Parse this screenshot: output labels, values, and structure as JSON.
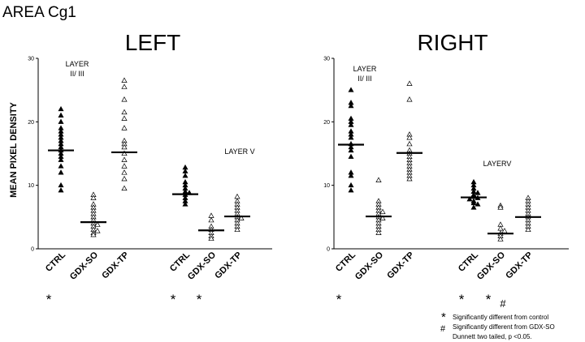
{
  "figure": {
    "title": "AREA Cg1",
    "ylabel": "MEAN PIXEL DENSITY",
    "legend": [
      {
        "symbol": "*",
        "text": "Significantly different from control"
      },
      {
        "symbol": "#",
        "text": "Significantly different from GDX-SO"
      },
      {
        "symbol": "",
        "text": "Dunnett two tailed, p <0.05."
      }
    ]
  },
  "chart_data": [
    {
      "type": "scatter",
      "title": "LEFT",
      "ylim": [
        0,
        30
      ],
      "yticks": [
        "0",
        "10",
        "20",
        "30"
      ],
      "grid": false,
      "groups": [
        {
          "layer_label": [
            "LAYER",
            "II/ III"
          ],
          "categories": [
            {
              "name": "CTRL",
              "marker": "filled",
              "mean": 15.5,
              "sig": "*",
              "values": [
                22,
                21,
                20,
                19,
                18.5,
                18,
                17.5,
                17,
                16.5,
                16,
                15.5,
                15,
                14.5,
                14,
                13,
                12,
                10,
                9.2
              ]
            },
            {
              "name": "GDX-SO",
              "marker": "open",
              "mean": 4.2,
              "sig": "",
              "values": [
                8.5,
                8,
                7,
                6.5,
                6,
                5.5,
                5,
                4.5,
                4,
                3.8,
                3.5,
                3,
                2.8,
                2.5,
                2.2
              ]
            },
            {
              "name": "GDX-TP",
              "marker": "open",
              "mean": 15.2,
              "sig": "",
              "values": [
                26.5,
                25.5,
                23.5,
                21.5,
                20.5,
                19,
                17,
                16.5,
                16,
                15,
                14,
                13,
                12,
                11,
                9.5
              ]
            }
          ]
        },
        {
          "layer_label": [
            "LAYER V"
          ],
          "categories": [
            {
              "name": "CTRL",
              "marker": "filled",
              "mean": 8.6,
              "sig": "*",
              "values": [
                12.8,
                12.2,
                11.5,
                10.5,
                10,
                9.5,
                9,
                8.8,
                8.5,
                8,
                7.5,
                7
              ]
            },
            {
              "name": "GDX-SO",
              "marker": "open",
              "mean": 2.9,
              "sig": "*",
              "values": [
                5.2,
                4.5,
                3.5,
                3,
                2.5,
                2,
                1.6
              ]
            },
            {
              "name": "GDX-TP",
              "marker": "open",
              "mean": 5.1,
              "sig": "",
              "values": [
                8.2,
                7.5,
                7,
                6.5,
                6,
                5.5,
                5,
                4.8,
                4.5,
                4,
                3.5,
                3
              ]
            }
          ]
        }
      ]
    },
    {
      "type": "scatter",
      "title": "RIGHT",
      "ylim": [
        0,
        30
      ],
      "yticks": [
        "0",
        "10",
        "20",
        "30"
      ],
      "grid": false,
      "groups": [
        {
          "layer_label": [
            "LAYER",
            "II/ III"
          ],
          "categories": [
            {
              "name": "CTRL",
              "marker": "filled",
              "mean": 16.4,
              "sig": "*",
              "values": [
                25,
                23,
                22.5,
                20.5,
                20,
                19.5,
                18.5,
                18,
                17.5,
                16.5,
                16,
                15.5,
                14.5,
                12,
                11.5,
                10,
                9.2
              ]
            },
            {
              "name": "GDX-SO",
              "marker": "open",
              "mean": 5.1,
              "sig": "",
              "values": [
                10.8,
                7.5,
                7,
                6.5,
                6,
                5.8,
                5.5,
                5,
                4.8,
                4.5,
                4,
                3.5,
                3,
                2.5
              ]
            },
            {
              "name": "GDX-TP",
              "marker": "open",
              "mean": 15.1,
              "sig": "",
              "values": [
                26,
                23.5,
                18,
                17.5,
                16.5,
                15.5,
                15,
                14.5,
                14,
                13.5,
                13,
                12.5,
                12,
                11.5,
                11
              ]
            }
          ]
        },
        {
          "layer_label": [
            "LAYERV"
          ],
          "categories": [
            {
              "name": "CTRL",
              "marker": "filled",
              "mean": 8.1,
              "sig": "*",
              "values": [
                10.5,
                10,
                9.5,
                9,
                8.8,
                8.5,
                8.2,
                8,
                7.8,
                7.5,
                7.2,
                7,
                6.5
              ]
            },
            {
              "name": "GDX-SO",
              "marker": "open",
              "mean": 2.4,
              "sig": "*#",
              "values": [
                6.8,
                6.5,
                3.8,
                3.2,
                2.8,
                2.4,
                2,
                1.5
              ]
            },
            {
              "name": "GDX-TP",
              "marker": "open",
              "mean": 5,
              "sig": "",
              "values": [
                8,
                7.5,
                7,
                6.5,
                6,
                5.5,
                5,
                4.5,
                4,
                3.5,
                3
              ]
            }
          ]
        }
      ]
    }
  ]
}
